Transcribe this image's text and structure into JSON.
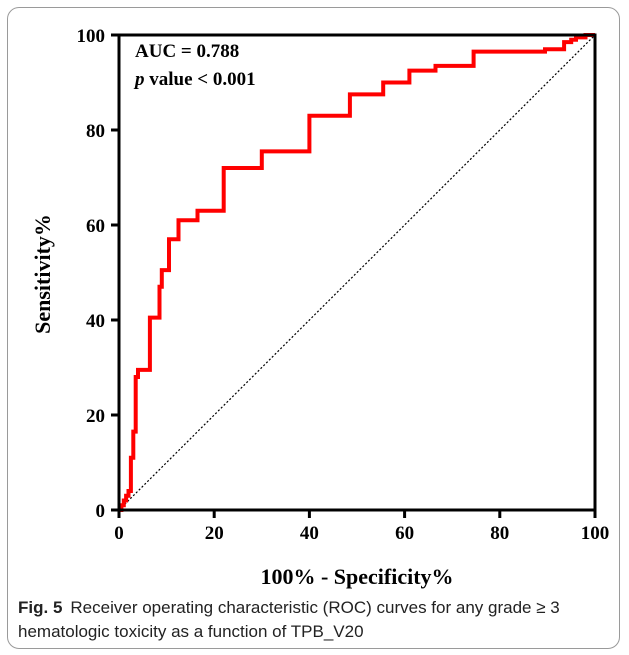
{
  "figure": {
    "label": "Fig. 5",
    "caption": "Receiver operating characteristic (ROC) curves for any grade ≥ 3 hematologic toxicity as a function of TPB_V20"
  },
  "chart_data": {
    "type": "line",
    "xlabel": "100% - Specificity%",
    "ylabel": "Sensitivity%",
    "xlim": [
      0,
      100
    ],
    "ylim": [
      0,
      100
    ],
    "x_ticks": [
      "0",
      "20",
      "40",
      "60",
      "80",
      "100"
    ],
    "y_ticks": [
      "0",
      "20",
      "40",
      "60",
      "80",
      "100"
    ],
    "grid": false,
    "annotations": {
      "auc_text": "AUC = 0.788",
      "p_italic": "p",
      "p_text": " value < 0.001"
    },
    "series": [
      {
        "color": "#ff0000",
        "x": [
          0,
          0.5,
          0.5,
          1,
          1,
          1.5,
          1.5,
          2,
          2,
          2.5,
          2.5,
          3,
          3,
          3.5,
          3.5,
          4,
          4,
          6.5,
          6.5,
          8.5,
          8.5,
          9,
          9,
          10.5,
          10.5,
          12.5,
          12.5,
          16.5,
          16.5,
          22,
          22,
          30,
          30,
          40,
          40,
          48.5,
          48.5,
          55.5,
          55.5,
          61,
          61,
          66.5,
          66.5,
          74.5,
          74.5,
          89.5,
          89.5,
          93.5,
          93.5,
          95,
          95,
          96,
          96,
          98,
          98,
          100
        ],
        "y": [
          0,
          0,
          1,
          1,
          2,
          2,
          3,
          3,
          4,
          4,
          11,
          11,
          16.5,
          16.5,
          28,
          28,
          29.5,
          29.5,
          40.5,
          40.5,
          47,
          47,
          50.5,
          50.5,
          57,
          57,
          61,
          61,
          63,
          63,
          72,
          72,
          75.5,
          75.5,
          83,
          83,
          87.5,
          87.5,
          90,
          90,
          92.5,
          92.5,
          93.5,
          93.5,
          96.5,
          96.5,
          97,
          97,
          98.5,
          98.5,
          99,
          99,
          99.5,
          99.5,
          100,
          100
        ]
      },
      {
        "color": "#000000",
        "x": [
          0,
          100
        ],
        "y": [
          0,
          100
        ]
      }
    ]
  }
}
